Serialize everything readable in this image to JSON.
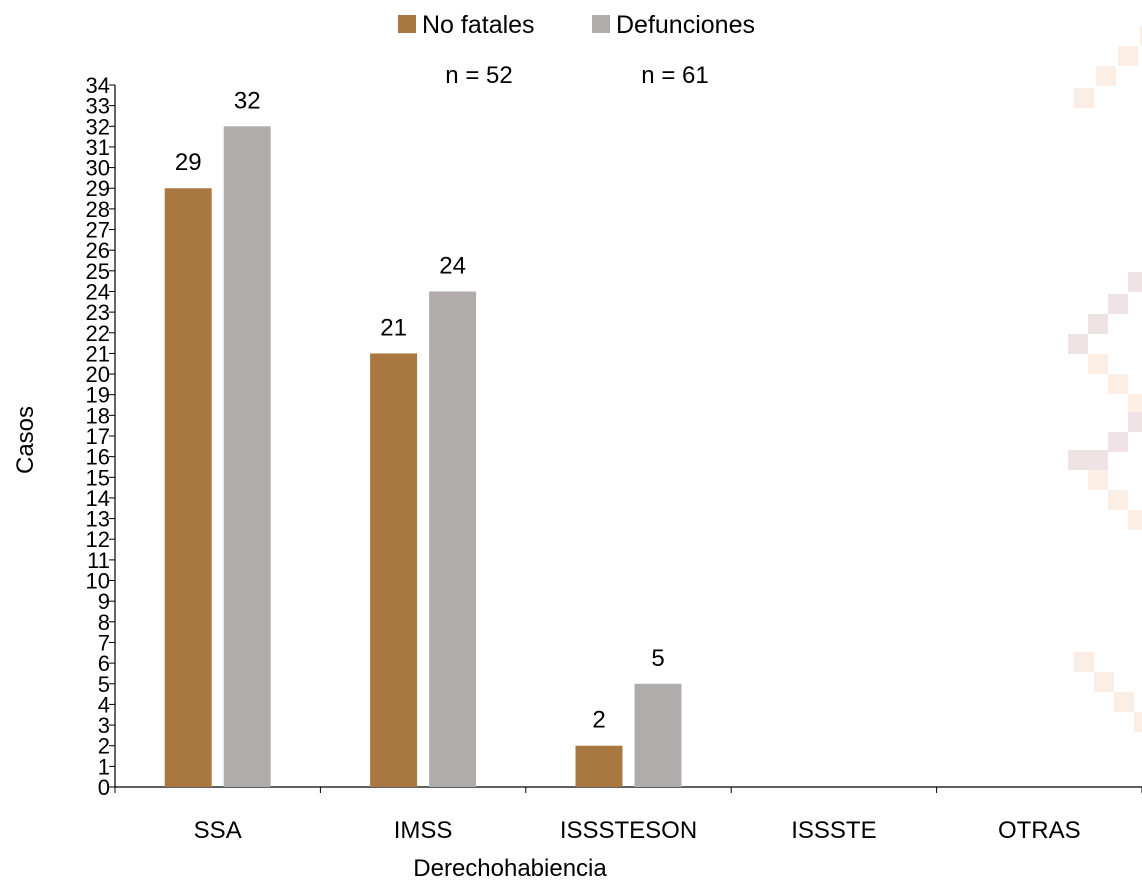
{
  "chart_data": {
    "type": "bar",
    "categories": [
      "SSA",
      "IMSS",
      "ISSSTESON",
      "ISSSTE",
      "OTRAS"
    ],
    "series": [
      {
        "name": "No fatales",
        "values": [
          29,
          21,
          2,
          null,
          null
        ],
        "color": "#A97841"
      },
      {
        "name": "Defunciones",
        "values": [
          32,
          24,
          5,
          null,
          null
        ],
        "color": "#AFACAB"
      }
    ],
    "series_counts": [
      "n = 52",
      "n = 61"
    ],
    "xlabel": "Derechohabiencia",
    "ylabel": "Casos",
    "ylim": [
      0,
      34
    ],
    "ytick_step": 1,
    "grid": false,
    "legend_position": "top-center"
  },
  "decoration": {
    "pattern_colors": [
      "#EFE3E6",
      "#FBEFE5"
    ]
  }
}
